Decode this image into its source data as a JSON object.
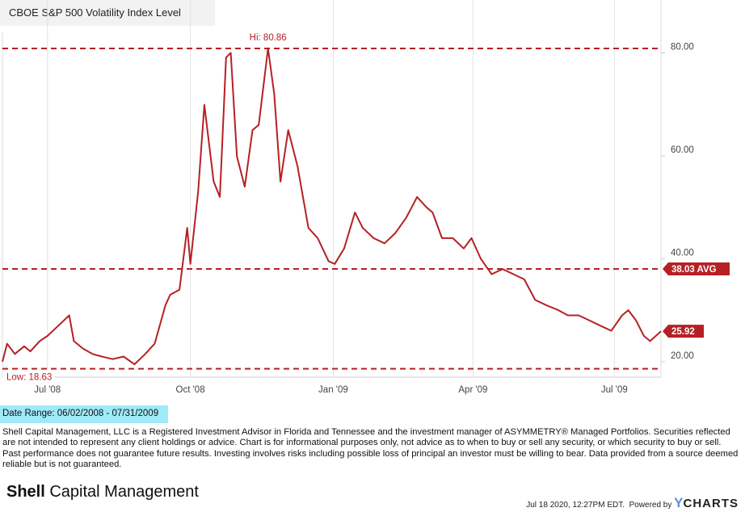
{
  "chart_title": "CBOE S&P 500 Volatility Index Level",
  "date_range": "Date Range: 06/02/2008 - 07/31/2009",
  "disclaimer": "Shell Capital Management, LLC is a Registered Investment Advisor in Florida and Tennessee and the investment manager of ASYMMETRY® Managed Portfolios. Securities reflected are not intended to represent any client holdings or advice. Chart is for informational purposes only, not advice as to when to buy or sell any security, or which security to buy or sell. Past performance does not guarantee future results. Investing involves risks including possible loss of principal an investor must be willing to bear. Data provided from a source deemed reliable but is not guaranteed.",
  "brand": {
    "strong": "Shell",
    "rest": " Capital Management"
  },
  "footer": {
    "timestamp": "Jul 18 2020, 12:27PM EDT.",
    "powered_by": "Powered by",
    "ycharts_y": "Y",
    "ycharts_rest": "CHARTS"
  },
  "colors": {
    "series": "#b52025",
    "grid": "#e3e3e3",
    "date_range_bg": "#9feaf9"
  },
  "chart_data": {
    "type": "line",
    "title": "CBOE S&P 500 Volatility Index Level",
    "ylim": [
      17,
      84
    ],
    "yticks": [
      20,
      40,
      60,
      80
    ],
    "ytick_labels": [
      "20.00",
      "40.00",
      "60.00",
      "80.00"
    ],
    "xtick_labels": [
      {
        "date": "2008-07-01",
        "label": "Jul '08"
      },
      {
        "date": "2008-10-01",
        "label": "Oct '08"
      },
      {
        "date": "2009-01-01",
        "label": "Jan '09"
      },
      {
        "date": "2009-04-01",
        "label": "Apr '09"
      },
      {
        "date": "2009-07-01",
        "label": "Jul '09"
      }
    ],
    "grid": "vertical",
    "hi": {
      "value": 80.86,
      "label": "Hi: 80.86"
    },
    "low": {
      "value": 18.63,
      "label": "Low: 18.63"
    },
    "avg": {
      "value": 38.03,
      "label": "38.03 AVG"
    },
    "last": {
      "value": 25.92,
      "label": "25.92"
    },
    "series": [
      {
        "x": [
          "2008-06-02",
          "2008-06-05",
          "2008-06-10",
          "2008-06-16",
          "2008-06-20",
          "2008-06-26",
          "2008-07-01",
          "2008-07-08",
          "2008-07-15",
          "2008-07-18",
          "2008-07-24",
          "2008-07-30",
          "2008-08-05",
          "2008-08-12",
          "2008-08-19",
          "2008-08-26",
          "2008-09-02",
          "2008-09-08",
          "2008-09-15",
          "2008-09-18",
          "2008-09-24",
          "2008-09-29",
          "2008-10-01",
          "2008-10-06",
          "2008-10-10",
          "2008-10-16",
          "2008-10-20",
          "2008-10-24",
          "2008-10-27",
          "2008-10-31",
          "2008-11-05",
          "2008-11-10",
          "2008-11-14",
          "2008-11-20",
          "2008-11-24",
          "2008-11-28",
          "2008-12-03",
          "2008-12-09",
          "2008-12-16",
          "2008-12-22",
          "2008-12-29",
          "2009-01-02",
          "2009-01-08",
          "2009-01-15",
          "2009-01-20",
          "2009-01-27",
          "2009-02-03",
          "2009-02-10",
          "2009-02-17",
          "2009-02-24",
          "2009-03-02",
          "2009-03-06",
          "2009-03-12",
          "2009-03-19",
          "2009-03-26",
          "2009-03-31",
          "2009-04-06",
          "2009-04-13",
          "2009-04-20",
          "2009-04-27",
          "2009-05-04",
          "2009-05-11",
          "2009-05-18",
          "2009-05-26",
          "2009-06-01",
          "2009-06-08",
          "2009-06-15",
          "2009-06-22",
          "2009-06-29",
          "2009-07-06",
          "2009-07-10",
          "2009-07-15",
          "2009-07-20",
          "2009-07-24",
          "2009-07-31"
        ],
        "y": [
          20.0,
          23.5,
          21.5,
          23.0,
          22.0,
          24.0,
          25.0,
          27.0,
          29.0,
          24.0,
          22.5,
          21.5,
          21.0,
          20.5,
          21.0,
          19.5,
          21.5,
          23.5,
          31.0,
          33.0,
          34.0,
          46.0,
          39.0,
          53.0,
          69.9,
          55.0,
          52.0,
          79.1,
          80.0,
          59.9,
          54.0,
          65.0,
          66.0,
          80.86,
          72.0,
          55.0,
          65.0,
          58.0,
          46.0,
          44.0,
          39.5,
          39.0,
          42.0,
          49.0,
          46.0,
          44.0,
          43.0,
          45.0,
          48.0,
          52.0,
          50.0,
          49.0,
          44.0,
          44.0,
          42.0,
          44.0,
          40.0,
          37.0,
          38.0,
          37.0,
          36.0,
          32.0,
          31.0,
          30.0,
          29.0,
          29.0,
          28.0,
          27.0,
          26.0,
          29.0,
          30.0,
          28.0,
          25.0,
          24.0,
          25.92
        ]
      }
    ]
  }
}
